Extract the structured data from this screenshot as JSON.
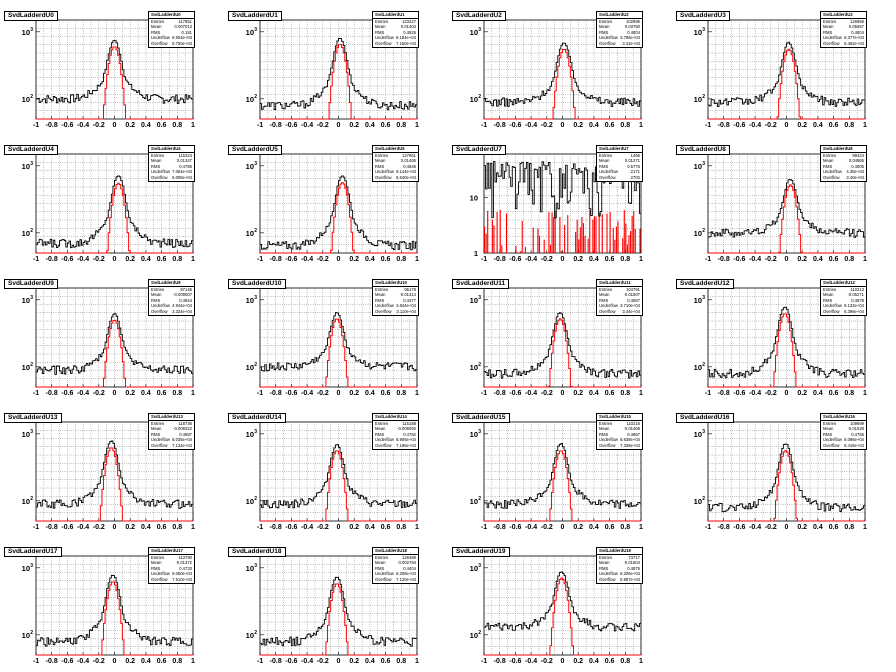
{
  "page": {
    "background": "#ffffff"
  },
  "colors": {
    "primary_hist": "#000000",
    "secondary_hist": "#ff0000",
    "grid": "#000000"
  },
  "x_tick_labels": [
    "-1",
    "-0.8",
    "-0.6",
    "-0.4",
    "-0.2",
    "0",
    "0.2",
    "0.4",
    "0.6",
    "0.8",
    "1"
  ],
  "chart_data": [
    {
      "type": "histogram",
      "title": "SvdLadderdU0",
      "stats_name": "SvdLadderdU0",
      "ylog": true,
      "y_ticks": [
        "10",
        "10",
        "3"
      ],
      "xlim": [
        -1,
        1
      ],
      "ylim": [
        50,
        1500
      ],
      "peak": 650,
      "center": 0.0,
      "baseline": 100,
      "second_peak": 600,
      "stats": [
        [
          "Entries",
          "117851"
        ],
        [
          "Mean",
          "0.007013"
        ],
        [
          "RMS",
          "0.181"
        ],
        [
          "Underflow",
          "8.504e+04"
        ],
        [
          "Overflow",
          "6.750e+04"
        ]
      ]
    },
    {
      "type": "histogram",
      "title": "SvdLadderdU1",
      "stats_name": "SvdLadderdU1",
      "ylog": true,
      "xlim": [
        -1,
        1
      ],
      "ylim": [
        50,
        1500
      ],
      "peak": 700,
      "center": 0.02,
      "baseline": 80,
      "second_peak": 650,
      "stats": [
        [
          "Entries",
          "123427"
        ],
        [
          "Mean",
          "0.01404"
        ],
        [
          "RMS",
          "0.4826"
        ],
        [
          "Underflow",
          "8.184e+04"
        ],
        [
          "Overflow",
          "7.150e+04"
        ]
      ]
    },
    {
      "type": "histogram",
      "title": "SvdLadderdU2",
      "stats_name": "SvdLadderdU2",
      "ylog": true,
      "xlim": [
        -1,
        1
      ],
      "ylim": [
        50,
        1500
      ],
      "peak": 600,
      "center": 0.02,
      "baseline": 90,
      "second_peak": 550,
      "stats": [
        [
          "Entries",
          "102895"
        ],
        [
          "Mean",
          "0.03760"
        ],
        [
          "RMS",
          "0.4804"
        ],
        [
          "Underflow",
          "3.796e+04"
        ],
        [
          "Overflow",
          "3.42e+04"
        ]
      ]
    },
    {
      "type": "histogram",
      "title": "SvdLadderdU3",
      "stats_name": "SvdLadderdU3",
      "ylog": true,
      "xlim": [
        -1,
        1
      ],
      "ylim": [
        50,
        1500
      ],
      "peak": 600,
      "center": 0.03,
      "baseline": 90,
      "second_peak": 550,
      "stats": [
        [
          "Entries",
          "126955"
        ],
        [
          "Mean",
          "0.05657"
        ],
        [
          "RMS",
          "0.4804"
        ],
        [
          "Underflow",
          "8.377e+04"
        ],
        [
          "Overflow",
          "6.462e+04"
        ]
      ]
    },
    {
      "type": "histogram",
      "title": "SvdLadderdU4",
      "stats_name": "SvdLadderdU4",
      "ylog": true,
      "xlim": [
        -1,
        1
      ],
      "ylim": [
        50,
        1500
      ],
      "peak": 620,
      "center": 0.05,
      "baseline": 70,
      "second_peak": 550,
      "stats": [
        [
          "Entries",
          "115324"
        ],
        [
          "Mean",
          "0.01347"
        ],
        [
          "RMS",
          "0.4786"
        ],
        [
          "Underflow",
          "7.064e+04"
        ],
        [
          "Overflow",
          "6.006e+04"
        ]
      ]
    },
    {
      "type": "histogram",
      "title": "SvdLadderdU5",
      "stats_name": "SvdLadderdU5",
      "ylog": true,
      "xlim": [
        -1,
        1
      ],
      "ylim": [
        50,
        1500
      ],
      "peak": 620,
      "center": 0.05,
      "baseline": 65,
      "second_peak": 560,
      "stats": [
        [
          "Entries",
          "127861"
        ],
        [
          "Mean",
          "0.01465"
        ],
        [
          "RMS",
          "0.4846"
        ],
        [
          "Underflow",
          "9.144e+04"
        ],
        [
          "Overflow",
          "8.640e+04"
        ]
      ]
    },
    {
      "type": "histogram",
      "title": "SvdLadderdU7",
      "stats_name": "SvdLadderdU7",
      "ylog": true,
      "flat": true,
      "xlim": [
        -1,
        1
      ],
      "ylim": [
        1,
        60
      ],
      "peak": 12,
      "center": 0.0,
      "baseline": 10,
      "second_peak": 4,
      "stats": [
        [
          "Entries",
          "1466"
        ],
        [
          "Mean",
          "0.01271"
        ],
        [
          "RMS",
          "0.5776"
        ],
        [
          "Underflow",
          "2171"
        ],
        [
          "Overflow",
          "2702"
        ]
      ]
    },
    {
      "type": "histogram",
      "title": "SvdLadderdU8",
      "stats_name": "SvdLadderdU8",
      "ylog": true,
      "xlim": [
        -1,
        1
      ],
      "ylim": [
        50,
        1500
      ],
      "peak": 550,
      "center": 0.05,
      "baseline": 100,
      "second_peak": 520,
      "stats": [
        [
          "Entries",
          "99424"
        ],
        [
          "Mean",
          "0.04865"
        ],
        [
          "RMS",
          "0.4905"
        ],
        [
          "Underflow",
          "4.35e+04"
        ],
        [
          "Overflow",
          "3.40e+04"
        ]
      ]
    },
    {
      "type": "histogram",
      "title": "SvdLadderdU9",
      "stats_name": "SvdLadderdU9",
      "ylog": true,
      "xlim": [
        -1,
        1
      ],
      "ylim": [
        50,
        1500
      ],
      "peak": 540,
      "center": 0.0,
      "baseline": 90,
      "second_peak": 500,
      "stats": [
        [
          "Entries",
          "97146"
        ],
        [
          "Mean",
          "-0.009007"
        ],
        [
          "RMS",
          "0.4844"
        ],
        [
          "Underflow",
          "4.944e+04"
        ],
        [
          "Overflow",
          "3.324e+04"
        ]
      ]
    },
    {
      "type": "histogram",
      "title": "SvdLadderdU10",
      "stats_name": "SvdLadderdU10",
      "ylog": true,
      "xlim": [
        -1,
        1
      ],
      "ylim": [
        50,
        1500
      ],
      "peak": 560,
      "center": -0.02,
      "baseline": 100,
      "second_peak": 520,
      "stats": [
        [
          "Entries",
          "95178"
        ],
        [
          "Mean",
          "-0.01314"
        ],
        [
          "RMS",
          "0.4477"
        ],
        [
          "Underflow",
          "3.844e+04"
        ],
        [
          "Overflow",
          "3.110e+04"
        ]
      ]
    },
    {
      "type": "histogram",
      "title": "SvdLadderdU11",
      "stats_name": "SvdLadderdU11",
      "ylog": true,
      "xlim": [
        -1,
        1
      ],
      "ylim": [
        50,
        1500
      ],
      "peak": 560,
      "center": -0.03,
      "baseline": 80,
      "second_peak": 520,
      "stats": [
        [
          "Entries",
          "104791"
        ],
        [
          "Mean",
          "-0.01507"
        ],
        [
          "RMS",
          "0.4567"
        ],
        [
          "Underflow",
          "3.710e+04"
        ],
        [
          "Overflow",
          "3.44e+04"
        ]
      ]
    },
    {
      "type": "histogram",
      "title": "SvdLadderdU12",
      "stats_name": "SvdLadderdU12",
      "ylog": true,
      "xlim": [
        -1,
        1
      ],
      "ylim": [
        50,
        1500
      ],
      "peak": 680,
      "center": -0.02,
      "baseline": 80,
      "second_peak": 620,
      "stats": [
        [
          "Entries",
          "110213"
        ],
        [
          "Mean",
          "-0.05271"
        ],
        [
          "RMS",
          "0.4878"
        ],
        [
          "Underflow",
          "8.132e+04"
        ],
        [
          "Overflow",
          "6.396e+04"
        ]
      ]
    },
    {
      "type": "histogram",
      "title": "SvdLadderdU13",
      "stats_name": "SvdLadderdU13",
      "ylog": true,
      "xlim": [
        -1,
        1
      ],
      "ylim": [
        50,
        1500
      ],
      "peak": 680,
      "center": -0.04,
      "baseline": 90,
      "second_peak": 620,
      "stats": [
        [
          "Entries",
          "118736"
        ],
        [
          "Mean",
          "-0.009322"
        ],
        [
          "RMS",
          "0.4887"
        ],
        [
          "Underflow",
          "8.035e+04"
        ],
        [
          "Overflow",
          "7.134e+04"
        ]
      ]
    },
    {
      "type": "histogram",
      "title": "SvdLadderdU14",
      "stats_name": "SvdLadderdU14",
      "ylog": true,
      "xlim": [
        -1,
        1
      ],
      "ylim": [
        50,
        1500
      ],
      "peak": 600,
      "center": -0.02,
      "baseline": 90,
      "second_peak": 560,
      "stats": [
        [
          "Entries",
          "115188"
        ],
        [
          "Mean",
          "-0.006092"
        ],
        [
          "RMS",
          "0.4782"
        ],
        [
          "Underflow",
          "8.906e+04"
        ],
        [
          "Overflow",
          "7.196e+04"
        ]
      ]
    },
    {
      "type": "histogram",
      "title": "SvdLadderdU15",
      "stats_name": "SvdLadderdU15",
      "ylog": true,
      "xlim": [
        -1,
        1
      ],
      "ylim": [
        50,
        1500
      ],
      "peak": 620,
      "center": -0.02,
      "baseline": 90,
      "second_peak": 560,
      "stats": [
        [
          "Entries",
          "110216"
        ],
        [
          "Mean",
          "-0.01468"
        ],
        [
          "RMS",
          "0.4867"
        ],
        [
          "Underflow",
          "8.638e+04"
        ],
        [
          "Overflow",
          "7.336e+04"
        ]
      ]
    },
    {
      "type": "histogram",
      "title": "SvdLadderdU16",
      "stats_name": "SvdLadderdU16",
      "ylog": true,
      "xlim": [
        -1,
        1
      ],
      "ylim": [
        50,
        1500
      ],
      "peak": 620,
      "center": -0.01,
      "baseline": 80,
      "second_peak": 560,
      "stats": [
        [
          "Entries",
          "109699"
        ],
        [
          "Mean",
          "-0.01028"
        ],
        [
          "RMS",
          "0.4755"
        ],
        [
          "Underflow",
          "8.096e+04"
        ],
        [
          "Overflow",
          "6.416e+04"
        ]
      ]
    },
    {
      "type": "histogram",
      "title": "SvdLadderdU17",
      "stats_name": "SvdLadderdU17",
      "ylog": true,
      "xlim": [
        -1,
        1
      ],
      "ylim": [
        50,
        1500
      ],
      "peak": 680,
      "center": -0.02,
      "baseline": 80,
      "second_peak": 620,
      "stats": [
        [
          "Entries",
          "113790"
        ],
        [
          "Mean",
          "-0.01372"
        ],
        [
          "RMS",
          "0.4733"
        ],
        [
          "Underflow",
          "8.060e+04"
        ],
        [
          "Overflow",
          "7.510e+04"
        ]
      ]
    },
    {
      "type": "histogram",
      "title": "SvdLadderdU18",
      "stats_name": "SvdLadderdU18",
      "ylog": true,
      "xlim": [
        -1,
        1
      ],
      "ylim": [
        50,
        1500
      ],
      "peak": 640,
      "center": -0.02,
      "baseline": 80,
      "second_peak": 580,
      "stats": [
        [
          "Entries",
          "126488"
        ],
        [
          "Mean",
          "0.002794"
        ],
        [
          "RMS",
          "0.4404"
        ],
        [
          "Underflow",
          "8.206e+04"
        ],
        [
          "Overflow",
          "7.120e+04"
        ]
      ]
    },
    {
      "type": "histogram",
      "title": "SvdLadderdU19",
      "stats_name": "SvdLadderdU19",
      "ylog": true,
      "xlim": [
        -1,
        1
      ],
      "ylim": [
        50,
        1500
      ],
      "peak": 760,
      "center": -0.01,
      "baseline": 130,
      "second_peak": 700,
      "stats": [
        [
          "Entries",
          "73717"
        ],
        [
          "Mean",
          "-0.01604"
        ],
        [
          "RMS",
          "0.4876"
        ],
        [
          "Underflow",
          "8.326e+04"
        ],
        [
          "Overflow",
          "6.887e+04"
        ]
      ]
    }
  ],
  "layout_slots": [
    0,
    1,
    2,
    3,
    4,
    5,
    -1,
    6,
    7,
    8,
    9,
    10,
    11,
    12,
    13,
    14,
    15,
    16,
    17,
    18
  ]
}
